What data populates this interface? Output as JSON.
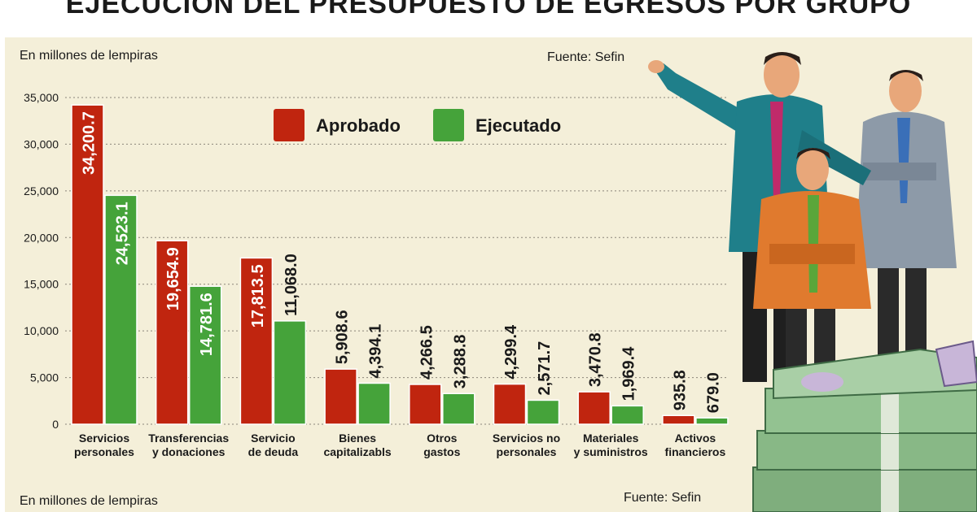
{
  "header": {
    "title": "EJECUCIÓN DEL PRESUPUESTO DE EGRESOS POR GRUPO"
  },
  "chart_data": {
    "type": "bar",
    "title": "EJECUCIÓN DEL PRESUPUESTO DE EGRESOS POR GRUPO",
    "unit_label_top": "En millones de lempiras",
    "unit_label_bottom": "En millones de lempiras",
    "source_top": "Fuente: Sefin",
    "source_bottom": "Fuente: Sefin",
    "categories": [
      [
        "Servicios",
        "personales"
      ],
      [
        "Transferencias",
        "y donaciones"
      ],
      [
        "Servicio",
        "de deuda"
      ],
      [
        "Bienes",
        "capitalizabls"
      ],
      [
        "Otros",
        "gastos"
      ],
      [
        "Servicios no",
        "personales"
      ],
      [
        "Materiales",
        "y suministros"
      ],
      [
        "Activos",
        "financieros"
      ]
    ],
    "series": [
      {
        "name": "Aprobado",
        "color": "#c0250f",
        "values": [
          34200.7,
          19654.9,
          17813.5,
          5908.6,
          4266.5,
          4299.4,
          3470.8,
          935.8
        ],
        "labels": [
          "34,200.7",
          "19,654.9",
          "17,813.5",
          "5,908.6",
          "4,266.5",
          "4,299.4",
          "3,470.8",
          "935.8"
        ]
      },
      {
        "name": "Ejecutado",
        "color": "#45a33a",
        "values": [
          24523.1,
          14781.6,
          11068.0,
          4394.1,
          3288.8,
          2571.7,
          1969.4,
          679.0
        ],
        "labels": [
          "24,523.1",
          "14,781.6",
          "11,068.0",
          "4,394.1",
          "3,288.8",
          "2,571.7",
          "1,969.4",
          "679.0"
        ]
      }
    ],
    "yticks": [
      0,
      5000,
      10000,
      15000,
      20000,
      25000,
      30000,
      35000
    ],
    "ytick_labels": [
      "0",
      "5,000",
      "10,000",
      "15,000",
      "20,000",
      "25,000",
      "30,000",
      "35,000"
    ],
    "ylim": [
      0,
      35000
    ],
    "grid": true,
    "legend_position": "top-center"
  },
  "illustration": {
    "icon": "businessmen-with-money-stacks-icon"
  }
}
